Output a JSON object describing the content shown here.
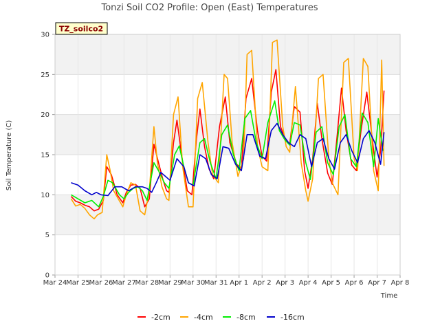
{
  "chart_data": {
    "type": "line",
    "title": "Tonzi Soil CO2 Profile: Open (East) Temperatures",
    "xlabel": "Time",
    "ylabel": "Soil Temperature (C)",
    "badge": "TZ_soilco2",
    "ylim": [
      0,
      30
    ],
    "yticks": [
      0,
      5,
      10,
      15,
      20,
      25,
      30
    ],
    "xlim": [
      0,
      15
    ],
    "xticks": [
      "Mar 24",
      "Mar 25",
      "Mar 26",
      "Mar 27",
      "Mar 28",
      "Mar 29",
      "Mar 30",
      "Mar 31",
      "Apr 1",
      "Apr 2",
      "Apr 3",
      "Apr 4",
      "Apr 5",
      "Apr 6",
      "Apr 7",
      "Apr 8"
    ],
    "grid": true,
    "legend_position": "bottom",
    "series": [
      {
        "name": "-2cm",
        "color": "#ff0000",
        "x": [
          0.7,
          0.9,
          1.1,
          1.3,
          1.5,
          1.7,
          1.9,
          2.1,
          2.25,
          2.45,
          2.7,
          2.95,
          3.1,
          3.3,
          3.5,
          3.7,
          3.9,
          4.1,
          4.3,
          4.5,
          4.7,
          4.85,
          4.95,
          5.15,
          5.3,
          5.5,
          5.75,
          5.95,
          6.15,
          6.3,
          6.5,
          6.7,
          6.9,
          7.15,
          7.4,
          7.6,
          7.9,
          8.1,
          8.3,
          8.55,
          8.8,
          9.0,
          9.2,
          9.4,
          9.6,
          9.8,
          10.0,
          10.2,
          10.4,
          10.65,
          10.85,
          11.0,
          11.2,
          11.4,
          11.6,
          11.85,
          12.05,
          12.25,
          12.45,
          12.65,
          12.9,
          13.1,
          13.3,
          13.55,
          13.85,
          14.0,
          14.15,
          14.3
        ],
        "y": [
          9.8,
          9.2,
          9.0,
          8.7,
          8.5,
          8.0,
          8.2,
          9.3,
          13.5,
          12.5,
          10.0,
          9.0,
          10.3,
          11.2,
          11.3,
          10.8,
          8.5,
          9.5,
          16.3,
          14.0,
          11.8,
          10.5,
          10.3,
          16.5,
          19.3,
          15.0,
          10.5,
          10.0,
          17.0,
          20.7,
          16.0,
          13.2,
          12.0,
          18.5,
          22.2,
          16.5,
          13.8,
          13.3,
          22.0,
          24.5,
          18.0,
          14.8,
          14.2,
          22.8,
          25.6,
          18.5,
          17.0,
          16.3,
          21.0,
          20.3,
          13.0,
          10.8,
          14.5,
          21.4,
          17.0,
          12.7,
          11.3,
          17.0,
          23.3,
          18.0,
          13.7,
          13.0,
          18.0,
          22.8,
          15.5,
          12.2,
          15.5,
          23.0
        ]
      },
      {
        "name": "-4cm",
        "color": "#ffa500",
        "x": [
          0.7,
          0.9,
          1.1,
          1.3,
          1.5,
          1.7,
          1.85,
          2.05,
          2.25,
          2.4,
          2.55,
          2.75,
          2.95,
          3.1,
          3.3,
          3.5,
          3.7,
          3.9,
          4.1,
          4.3,
          4.45,
          4.65,
          4.85,
          4.95,
          5.15,
          5.35,
          5.55,
          5.8,
          6.0,
          6.2,
          6.4,
          6.65,
          6.85,
          7.1,
          7.35,
          7.5,
          7.7,
          7.95,
          8.2,
          8.35,
          8.55,
          8.8,
          9.0,
          9.25,
          9.45,
          9.65,
          9.9,
          10.05,
          10.2,
          10.45,
          10.7,
          10.9,
          11.0,
          11.2,
          11.45,
          11.65,
          11.9,
          12.05,
          12.3,
          12.55,
          12.75,
          13.0,
          13.15,
          13.4,
          13.6,
          13.85,
          14.05,
          14.2,
          14.3
        ],
        "y": [
          9.5,
          8.6,
          8.8,
          8.3,
          7.5,
          7.0,
          7.5,
          7.8,
          15.0,
          13.0,
          10.5,
          9.5,
          8.5,
          10.0,
          11.5,
          11.2,
          8.0,
          7.5,
          10.5,
          18.5,
          14.0,
          11.0,
          9.5,
          9.3,
          20.0,
          22.2,
          13.5,
          8.5,
          8.5,
          22.0,
          24.0,
          16.5,
          12.5,
          11.5,
          25.0,
          24.5,
          16.5,
          12.3,
          14.5,
          27.5,
          28.0,
          16.0,
          13.5,
          13.0,
          29.0,
          29.3,
          18.5,
          16.0,
          15.3,
          23.5,
          14.0,
          10.5,
          9.2,
          12.0,
          24.5,
          25.0,
          14.5,
          11.5,
          10.0,
          26.5,
          27.0,
          14.5,
          13.0,
          27.0,
          26.0,
          13.0,
          10.5,
          26.8,
          13.6
        ]
      },
      {
        "name": "-8cm",
        "color": "#00ee00",
        "x": [
          0.7,
          1.0,
          1.3,
          1.6,
          1.9,
          2.1,
          2.3,
          2.5,
          2.8,
          3.0,
          3.2,
          3.4,
          3.6,
          3.8,
          4.0,
          4.3,
          4.5,
          4.75,
          4.95,
          5.2,
          5.4,
          5.6,
          5.8,
          6.0,
          6.3,
          6.5,
          6.75,
          7.0,
          7.25,
          7.5,
          7.75,
          8.0,
          8.25,
          8.5,
          8.75,
          9.0,
          9.25,
          9.55,
          9.75,
          10.0,
          10.2,
          10.4,
          10.65,
          10.9,
          11.1,
          11.35,
          11.6,
          11.85,
          12.1,
          12.35,
          12.6,
          12.85,
          13.1,
          13.35,
          13.6,
          13.85,
          14.05,
          14.25
        ],
        "y": [
          10.0,
          9.5,
          9.0,
          9.3,
          8.5,
          9.8,
          11.8,
          11.5,
          10.0,
          9.5,
          10.3,
          10.8,
          11.0,
          10.5,
          9.3,
          14.0,
          13.0,
          11.5,
          10.8,
          15.0,
          16.1,
          13.5,
          11.5,
          11.2,
          16.5,
          17.0,
          14.0,
          12.0,
          17.5,
          18.7,
          15.0,
          13.0,
          19.5,
          20.5,
          16.5,
          14.5,
          19.0,
          21.7,
          18.0,
          16.8,
          16.2,
          19.0,
          18.7,
          14.0,
          11.9,
          17.8,
          18.5,
          14.0,
          12.5,
          18.5,
          20.0,
          14.5,
          13.5,
          20.2,
          19.0,
          13.5,
          19.5,
          15.5
        ]
      },
      {
        "name": "-16cm",
        "color": "#0000cc",
        "x": [
          0.7,
          1.0,
          1.3,
          1.6,
          1.8,
          2.0,
          2.3,
          2.6,
          2.9,
          3.2,
          3.5,
          3.8,
          4.0,
          4.2,
          4.4,
          4.6,
          4.8,
          5.0,
          5.3,
          5.6,
          5.8,
          6.05,
          6.3,
          6.55,
          6.8,
          7.05,
          7.3,
          7.55,
          7.85,
          8.1,
          8.35,
          8.6,
          8.9,
          9.15,
          9.4,
          9.65,
          9.9,
          10.15,
          10.4,
          10.65,
          10.9,
          11.15,
          11.4,
          11.65,
          11.9,
          12.15,
          12.4,
          12.65,
          12.9,
          13.15,
          13.4,
          13.65,
          13.9,
          14.15,
          14.3
        ],
        "y": [
          11.5,
          11.2,
          10.5,
          10.0,
          10.3,
          10.0,
          9.9,
          11.0,
          11.0,
          10.5,
          11.0,
          11.0,
          10.8,
          10.3,
          11.5,
          12.8,
          12.3,
          11.8,
          14.5,
          13.5,
          11.5,
          11.1,
          15.0,
          14.5,
          12.5,
          12.0,
          16.0,
          15.8,
          13.8,
          13.0,
          17.5,
          17.5,
          14.8,
          14.5,
          18.0,
          18.9,
          17.5,
          16.5,
          16.0,
          17.5,
          17.0,
          13.5,
          16.5,
          17.0,
          14.5,
          13.2,
          16.5,
          17.5,
          15.5,
          14.0,
          17.0,
          18.0,
          16.5,
          13.8,
          17.8
        ]
      }
    ]
  }
}
